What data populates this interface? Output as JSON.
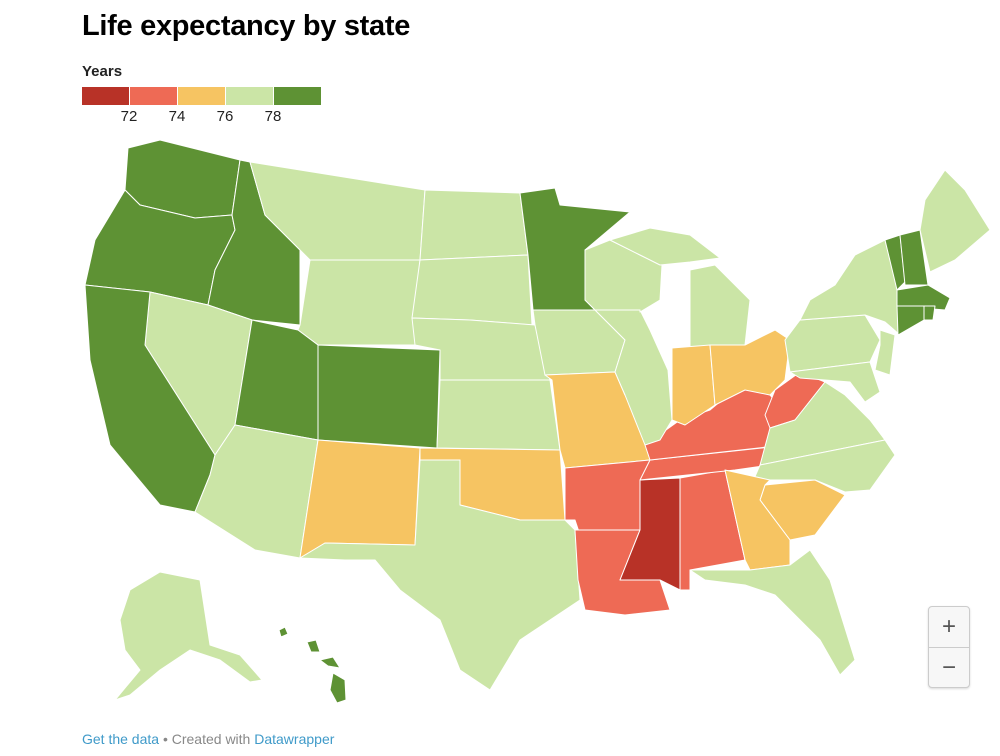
{
  "title": "Life expectancy by state",
  "legend": {
    "title": "Years",
    "bins": [
      {
        "label": "<72",
        "color": "#b83227"
      },
      {
        "label": "72–74",
        "color": "#ee6a55"
      },
      {
        "label": "74–76",
        "color": "#f6c462"
      },
      {
        "label": "76–78",
        "color": "#cbe5a6"
      },
      {
        "label": ">78",
        "color": "#5e9234"
      }
    ],
    "ticks": [
      "72",
      "74",
      "76",
      "78"
    ]
  },
  "states": {
    "WA": 4,
    "OR": 4,
    "CA": 4,
    "ID": 4,
    "UT": 4,
    "CO": 4,
    "MN": 4,
    "VT": 4,
    "NH": 4,
    "MA": 4,
    "CT": 4,
    "RI": 4,
    "HI": 4,
    "MT": 3,
    "ND": 3,
    "SD": 3,
    "WY": 3,
    "NE": 3,
    "KS": 3,
    "NV": 3,
    "AZ": 3,
    "TX": 3,
    "IA": 3,
    "WI": 3,
    "MI": 3,
    "IL": 3,
    "NY": 3,
    "PA": 3,
    "NJ": 3,
    "MD": 3,
    "VA": 3,
    "NC": 3,
    "FL": 3,
    "ME": 3,
    "AK": 3,
    "MO": 2,
    "IN": 2,
    "OH": 2,
    "OK": 2,
    "NM": 2,
    "GA": 2,
    "SC": 2,
    "WV": 1,
    "KY": 1,
    "TN": 1,
    "AR": 1,
    "LA": 1,
    "AL": 1,
    "MS": 0
  },
  "zoom": {
    "in": "+",
    "out": "−"
  },
  "footer": {
    "get_data": "Get the data",
    "separator": " • Created with ",
    "tool": "Datawrapper"
  }
}
